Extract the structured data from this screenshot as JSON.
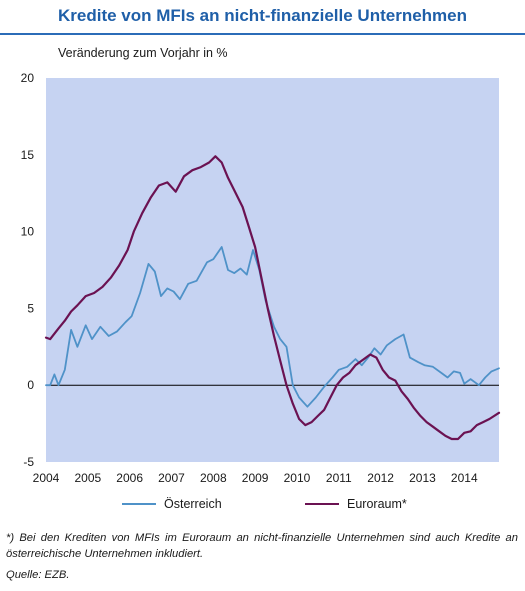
{
  "title": "Kredite von MFIs an nicht-finanzielle Unternehmen",
  "subtitle": "Veränderung zum Vorjahr in %",
  "footnote": "*) Bei den Krediten von MFIs im Euroraum an nicht-finanzielle Unternehmen sind auch Kredite an österreichische Unternehmen inkludiert.",
  "source": "Quelle: EZB.",
  "colors": {
    "plot_bg": "#c6d3f2",
    "oesterreich": "#4f92c8",
    "euroraum": "#6b1252",
    "axis": "#000000"
  },
  "chart_data": {
    "type": "line",
    "title": "Kredite von MFIs an nicht-finanzielle Unternehmen",
    "ylabel": "Veränderung zum Vorjahr in %",
    "xlabel": "",
    "x_ticks": [
      "2004",
      "2005",
      "2006",
      "2007",
      "2008",
      "2009",
      "2010",
      "2011",
      "2012",
      "2013",
      "2014"
    ],
    "y_ticks": [
      "20",
      "15",
      "10",
      "5",
      "0",
      "-5"
    ],
    "xlim": [
      2004.0,
      2014.83
    ],
    "ylim": [
      -5,
      20
    ],
    "grid": false,
    "legend_position": "bottom",
    "series": [
      {
        "name": "Österreich",
        "color": "#4f92c8",
        "points": [
          [
            2004.0,
            0.0
          ],
          [
            2004.1,
            0.0
          ],
          [
            2004.2,
            0.7
          ],
          [
            2004.3,
            0.0
          ],
          [
            2004.45,
            1.0
          ],
          [
            2004.6,
            3.6
          ],
          [
            2004.75,
            2.5
          ],
          [
            2004.95,
            3.9
          ],
          [
            2005.1,
            3.0
          ],
          [
            2005.3,
            3.8
          ],
          [
            2005.5,
            3.2
          ],
          [
            2005.7,
            3.5
          ],
          [
            2005.9,
            4.1
          ],
          [
            2006.05,
            4.5
          ],
          [
            2006.25,
            6.0
          ],
          [
            2006.45,
            7.9
          ],
          [
            2006.6,
            7.4
          ],
          [
            2006.75,
            5.8
          ],
          [
            2006.9,
            6.3
          ],
          [
            2007.05,
            6.1
          ],
          [
            2007.2,
            5.6
          ],
          [
            2007.4,
            6.6
          ],
          [
            2007.6,
            6.8
          ],
          [
            2007.85,
            8.0
          ],
          [
            2008.0,
            8.2
          ],
          [
            2008.2,
            9.0
          ],
          [
            2008.35,
            7.5
          ],
          [
            2008.5,
            7.3
          ],
          [
            2008.65,
            7.6
          ],
          [
            2008.8,
            7.2
          ],
          [
            2008.95,
            8.8
          ],
          [
            2009.1,
            7.5
          ],
          [
            2009.25,
            5.5
          ],
          [
            2009.45,
            3.8
          ],
          [
            2009.6,
            3.0
          ],
          [
            2009.75,
            2.5
          ],
          [
            2009.9,
            0.0
          ],
          [
            2010.05,
            -0.8
          ],
          [
            2010.25,
            -1.4
          ],
          [
            2010.45,
            -0.8
          ],
          [
            2010.65,
            -0.1
          ],
          [
            2010.85,
            0.5
          ],
          [
            2011.0,
            1.0
          ],
          [
            2011.2,
            1.2
          ],
          [
            2011.4,
            1.7
          ],
          [
            2011.55,
            1.3
          ],
          [
            2011.7,
            1.8
          ],
          [
            2011.85,
            2.4
          ],
          [
            2012.0,
            2.0
          ],
          [
            2012.15,
            2.6
          ],
          [
            2012.35,
            3.0
          ],
          [
            2012.55,
            3.3
          ],
          [
            2012.7,
            1.8
          ],
          [
            2012.9,
            1.5
          ],
          [
            2013.05,
            1.3
          ],
          [
            2013.25,
            1.2
          ],
          [
            2013.45,
            0.8
          ],
          [
            2013.6,
            0.5
          ],
          [
            2013.75,
            0.9
          ],
          [
            2013.9,
            0.8
          ],
          [
            2014.0,
            0.1
          ],
          [
            2014.15,
            0.4
          ],
          [
            2014.35,
            0.0
          ],
          [
            2014.5,
            0.5
          ],
          [
            2014.65,
            0.9
          ],
          [
            2014.83,
            1.1
          ]
        ]
      },
      {
        "name": "Euroraum*",
        "color": "#6b1252",
        "points": [
          [
            2004.0,
            3.1
          ],
          [
            2004.1,
            3.0
          ],
          [
            2004.3,
            3.7
          ],
          [
            2004.45,
            4.2
          ],
          [
            2004.6,
            4.8
          ],
          [
            2004.75,
            5.2
          ],
          [
            2004.95,
            5.8
          ],
          [
            2005.15,
            6.0
          ],
          [
            2005.35,
            6.4
          ],
          [
            2005.55,
            7.0
          ],
          [
            2005.75,
            7.8
          ],
          [
            2005.95,
            8.8
          ],
          [
            2006.1,
            10.0
          ],
          [
            2006.3,
            11.2
          ],
          [
            2006.5,
            12.2
          ],
          [
            2006.7,
            13.0
          ],
          [
            2006.9,
            13.2
          ],
          [
            2007.1,
            12.6
          ],
          [
            2007.3,
            13.6
          ],
          [
            2007.5,
            14.0
          ],
          [
            2007.7,
            14.2
          ],
          [
            2007.9,
            14.5
          ],
          [
            2008.05,
            14.9
          ],
          [
            2008.2,
            14.5
          ],
          [
            2008.35,
            13.5
          ],
          [
            2008.5,
            12.7
          ],
          [
            2008.7,
            11.6
          ],
          [
            2008.85,
            10.3
          ],
          [
            2009.0,
            9.0
          ],
          [
            2009.15,
            7.0
          ],
          [
            2009.3,
            5.0
          ],
          [
            2009.45,
            3.2
          ],
          [
            2009.6,
            1.6
          ],
          [
            2009.75,
            0.0
          ],
          [
            2009.9,
            -1.2
          ],
          [
            2010.05,
            -2.2
          ],
          [
            2010.2,
            -2.6
          ],
          [
            2010.35,
            -2.4
          ],
          [
            2010.5,
            -2.0
          ],
          [
            2010.65,
            -1.6
          ],
          [
            2010.8,
            -0.8
          ],
          [
            2010.95,
            0.0
          ],
          [
            2011.1,
            0.5
          ],
          [
            2011.25,
            0.8
          ],
          [
            2011.4,
            1.3
          ],
          [
            2011.55,
            1.6
          ],
          [
            2011.75,
            2.0
          ],
          [
            2011.9,
            1.8
          ],
          [
            2012.05,
            1.0
          ],
          [
            2012.2,
            0.5
          ],
          [
            2012.35,
            0.3
          ],
          [
            2012.5,
            -0.4
          ],
          [
            2012.65,
            -0.9
          ],
          [
            2012.8,
            -1.5
          ],
          [
            2012.95,
            -2.0
          ],
          [
            2013.1,
            -2.4
          ],
          [
            2013.25,
            -2.7
          ],
          [
            2013.4,
            -3.0
          ],
          [
            2013.55,
            -3.3
          ],
          [
            2013.7,
            -3.5
          ],
          [
            2013.85,
            -3.5
          ],
          [
            2014.0,
            -3.1
          ],
          [
            2014.15,
            -3.0
          ],
          [
            2014.3,
            -2.6
          ],
          [
            2014.45,
            -2.4
          ],
          [
            2014.6,
            -2.2
          ],
          [
            2014.83,
            -1.8
          ]
        ]
      }
    ]
  }
}
